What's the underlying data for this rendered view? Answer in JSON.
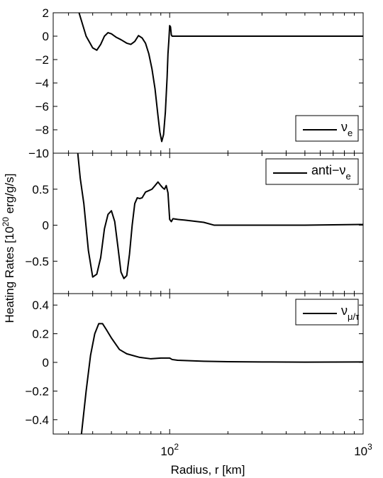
{
  "chart_data": {
    "type": "line",
    "xlabel": "Radius, r [km]",
    "ylabel_main": "Heating Rates [10",
    "ylabel_exp": "20",
    "ylabel_rest": " erg/g/s]",
    "xscale": "log",
    "xlim": [
      25,
      1000
    ],
    "xticks": [
      {
        "value": 100,
        "base": "10",
        "exp": "2"
      },
      {
        "value": 1000,
        "base": "10",
        "exp": "3"
      }
    ],
    "panels": [
      {
        "id": "nu-e",
        "legend": {
          "sym": "ν",
          "sub": "e",
          "pre": "",
          "placement": "lower-right"
        },
        "ylim": [
          -10,
          2
        ],
        "ytick_labels": [
          "2",
          "0",
          "−2",
          "−4",
          "−6",
          "−8",
          "−10"
        ],
        "yticks": [
          2,
          0,
          -2,
          -4,
          -6,
          -8,
          -10
        ],
        "series": [
          {
            "x": [
              34,
              37,
              40,
              42,
              44,
              46,
              48,
              50,
              53,
              56,
              60,
              63,
              66,
              69,
              72,
              75,
              78,
              81,
              84,
              87,
              89,
              91,
              93,
              95,
              97,
              98,
              99,
              100,
              101,
              102,
              103,
              105,
              110,
              150,
              300,
              1000
            ],
            "y": [
              2.0,
              0.0,
              -1.0,
              -1.2,
              -0.7,
              0.0,
              0.3,
              0.2,
              -0.1,
              -0.3,
              -0.6,
              -0.7,
              -0.45,
              0.05,
              -0.15,
              -0.6,
              -1.5,
              -2.8,
              -4.5,
              -6.8,
              -8.2,
              -9.0,
              -8.4,
              -6.5,
              -3.5,
              -1.5,
              -0.4,
              0.9,
              0.8,
              0.1,
              0.0,
              0.0,
              0.0,
              0.0,
              0.0,
              0.0
            ]
          }
        ]
      },
      {
        "id": "anti-nu-e",
        "legend": {
          "sym": "ν",
          "sub": "e",
          "pre": "anti−",
          "placement": "upper-right"
        },
        "ylim": [
          -0.95,
          1.0
        ],
        "ytick_labels": [
          "0.5",
          "0",
          "−0.5"
        ],
        "yticks": [
          0.5,
          0,
          -0.5
        ],
        "series": [
          {
            "x": [
              33.5,
              34.5,
              36,
              38,
              40,
              42,
              44,
              46,
              48,
              50,
              52,
              54,
              56,
              58,
              60,
              62,
              64,
              66,
              68,
              70,
              72,
              75,
              78,
              81,
              84,
              87,
              90,
              92,
              94,
              96,
              98,
              100,
              102,
              104,
              110,
              120,
              150,
              170,
              200,
              300,
              500,
              1000
            ],
            "y": [
              1.0,
              0.65,
              0.3,
              -0.35,
              -0.72,
              -0.68,
              -0.45,
              -0.05,
              0.15,
              0.2,
              0.05,
              -0.3,
              -0.65,
              -0.74,
              -0.7,
              -0.4,
              0.0,
              0.3,
              0.38,
              0.37,
              0.38,
              0.46,
              0.48,
              0.5,
              0.55,
              0.6,
              0.55,
              0.52,
              0.5,
              0.55,
              0.45,
              0.08,
              0.05,
              0.09,
              0.08,
              0.07,
              0.04,
              0.0,
              0.0,
              0.0,
              0.0,
              0.01
            ]
          }
        ]
      },
      {
        "id": "nu-mu-tau",
        "legend": {
          "sym": "ν",
          "sub": "μ/τ",
          "pre": "",
          "placement": "upper-right"
        },
        "ylim": [
          -0.5,
          0.48
        ],
        "ytick_labels": [
          "0.4",
          "0.2",
          "0",
          "−0.2",
          "−0.4"
        ],
        "yticks": [
          0.4,
          0.2,
          0,
          -0.2,
          -0.4
        ],
        "series": [
          {
            "x": [
              35,
              37,
              39,
              41,
              43,
              45,
              47,
              50,
              55,
              60,
              70,
              80,
              90,
              100,
              103,
              110,
              150,
              200,
              300,
              500,
              1000
            ],
            "y": [
              -0.5,
              -0.2,
              0.05,
              0.2,
              0.27,
              0.27,
              0.23,
              0.17,
              0.09,
              0.06,
              0.035,
              0.025,
              0.03,
              0.03,
              0.02,
              0.015,
              0.008,
              0.005,
              0.003,
              0.002,
              0.003
            ]
          }
        ]
      }
    ]
  }
}
